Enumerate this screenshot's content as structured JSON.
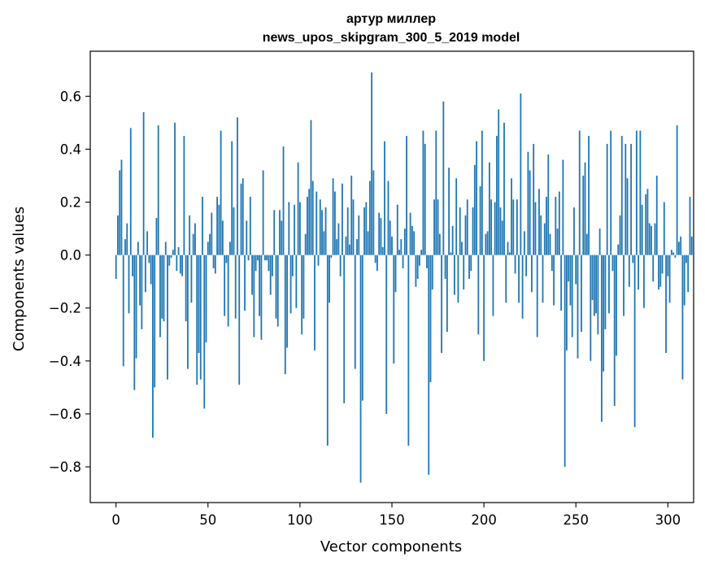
{
  "chart_data": {
    "type": "bar",
    "title_lines": [
      "артур миллер",
      "news_upos_skipgram_300_5_2019 model"
    ],
    "xlabel": "Vector components",
    "ylabel": "Components values",
    "xlim": [
      -14,
      314
    ],
    "ylim": [
      -0.935,
      0.77
    ],
    "xticks": [
      0,
      50,
      100,
      150,
      200,
      250,
      300
    ],
    "yticks": [
      -0.8,
      -0.6,
      -0.4,
      -0.2,
      0.0,
      0.2,
      0.4,
      0.6
    ],
    "ytick_labels": [
      "−0.8",
      "−0.6",
      "−0.4",
      "−0.2",
      "0.0",
      "0.2",
      "0.4",
      "0.6"
    ],
    "bar_color": "#1f77b4",
    "values": [
      -0.09,
      0.15,
      0.32,
      0.36,
      -0.42,
      0.06,
      0.12,
      -0.22,
      0.48,
      -0.08,
      -0.51,
      -0.39,
      0.05,
      -0.19,
      -0.28,
      0.54,
      -0.14,
      0.09,
      -0.03,
      -0.11,
      -0.69,
      -0.5,
      0.14,
      0.49,
      -0.31,
      -0.24,
      -0.25,
      0.05,
      -0.47,
      -0.04,
      -0.01,
      0.02,
      0.5,
      -0.06,
      0.03,
      -0.07,
      -0.08,
      0.45,
      -0.25,
      -0.43,
      0.15,
      -0.18,
      0.08,
      0.12,
      -0.49,
      -0.37,
      -0.47,
      0.22,
      -0.58,
      -0.33,
      0.05,
      0.08,
      0.16,
      -0.05,
      -0.07,
      0.22,
      0.19,
      0.47,
      0.13,
      -0.23,
      -0.03,
      -0.27,
      0.05,
      0.43,
      0.18,
      -0.24,
      0.52,
      -0.49,
      0.27,
      0.29,
      -0.21,
      0.13,
      -0.02,
      0.22,
      -0.15,
      -0.31,
      -0.06,
      -0.02,
      -0.23,
      -0.32,
      0.32,
      -0.02,
      -0.02,
      -0.06,
      -0.15,
      -0.08,
      0.17,
      -0.24,
      -0.27,
      0.17,
      0.13,
      0.41,
      -0.45,
      -0.35,
      0.2,
      -0.22,
      -0.08,
      0.19,
      -0.2,
      0.35,
      0.2,
      -0.3,
      -0.24,
      0.08,
      0.22,
      0.25,
      0.51,
      0.28,
      -0.36,
      0.24,
      -0.04,
      0.21,
      0.17,
      0.09,
      0.18,
      -0.72,
      -0.18,
      -0.01,
      0.29,
      0.24,
      0.06,
      0.12,
      -0.08,
      0.27,
      -0.56,
      0.07,
      0.18,
      0.04,
      0.3,
      0.21,
      -0.43,
      0.06,
      0.15,
      -0.86,
      -0.55,
      0.18,
      0.2,
      0.09,
      0.28,
      0.69,
      0.32,
      -0.03,
      -0.06,
      0.16,
      0.14,
      0.03,
      0.43,
      -0.6,
      0.28,
      0.13,
      0.07,
      -0.41,
      -0.14,
      0.19,
      0.02,
      0.06,
      -0.05,
      0.1,
      0.45,
      -0.72,
      0.16,
      0.11,
      0.09,
      -0.12,
      -0.09,
      -0.04,
      0.02,
      0.47,
      0.42,
      -0.05,
      -0.83,
      -0.48,
      -0.13,
      0.21,
      0.47,
      0.21,
      0.08,
      -0.37,
      0.58,
      -0.09,
      -0.29,
      0.33,
      0.01,
      0.11,
      -0.15,
      0.29,
      -0.18,
      0.18,
      0.05,
      -0.13,
      0.15,
      0.21,
      -0.09,
      -0.06,
      0.18,
      0.34,
      0.43,
      -0.3,
      0.26,
      0.47,
      -0.4,
      0.08,
      0.09,
      0.35,
      0.21,
      -0.23,
      0.2,
      0.45,
      0.55,
      0.18,
      0.13,
      0.5,
      -0.18,
      0.05,
      0.01,
      0.29,
      0.21,
      -0.07,
      0.21,
      -0.18,
      0.61,
      -0.24,
      0.09,
      -0.08,
      0.39,
      0.32,
      -0.14,
      0.42,
      0.2,
      -0.31,
      0.25,
      0.15,
      -0.18,
      0.12,
      0.22,
      0.38,
      0.08,
      -0.06,
      -0.19,
      0.22,
      0.1,
      0.24,
      -0.21,
      0.36,
      -0.8,
      -0.36,
      -0.1,
      -0.19,
      -0.31,
      0.18,
      -0.11,
      -0.39,
      0.47,
      -0.29,
      0.3,
      0.35,
      0.08,
      0.45,
      -0.4,
      -0.17,
      -0.23,
      -0.22,
      -0.3,
      0.1,
      -0.63,
      -0.44,
      -0.28,
      0.42,
      -0.22,
      0.47,
      -0.06,
      -0.57,
      -0.38,
      0.04,
      0.15,
      0.45,
      -0.23,
      0.42,
      0.29,
      -0.12,
      0.42,
      -0.03,
      -0.65,
      0.47,
      -0.13,
      0.47,
      0.19,
      -0.2,
      0.23,
      0.25,
      0.12,
      0.11,
      -0.1,
      0.12,
      0.3,
      -0.13,
      -0.12,
      -0.07,
      0.2,
      -0.37,
      -0.08,
      -0.18,
      0.02,
      0.01,
      -0.01,
      0.49,
      0.05,
      0.07,
      -0.47,
      -0.19,
      -0.03,
      -0.14,
      0.22,
      0.07
    ]
  }
}
